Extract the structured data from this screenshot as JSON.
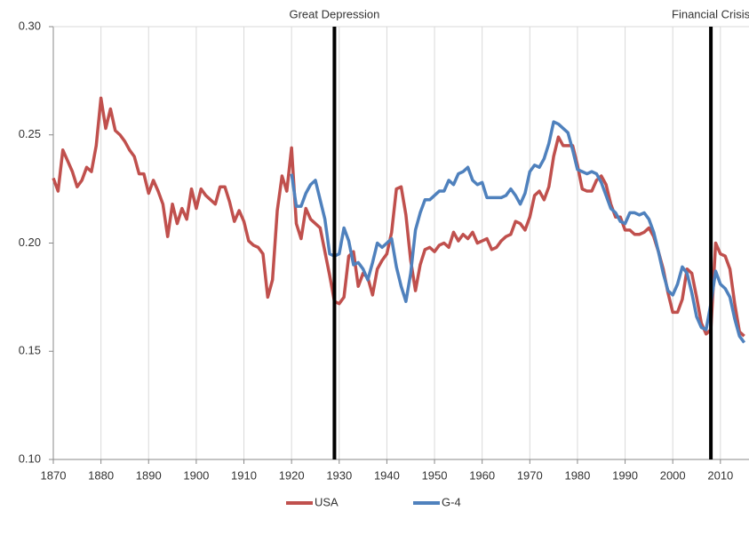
{
  "chart_data": {
    "type": "line",
    "x": [
      1870,
      1871,
      1872,
      1873,
      1874,
      1875,
      1876,
      1877,
      1878,
      1879,
      1880,
      1881,
      1882,
      1883,
      1884,
      1885,
      1886,
      1887,
      1888,
      1889,
      1890,
      1891,
      1892,
      1893,
      1894,
      1895,
      1896,
      1897,
      1898,
      1899,
      1900,
      1901,
      1902,
      1903,
      1904,
      1905,
      1906,
      1907,
      1908,
      1909,
      1910,
      1911,
      1912,
      1913,
      1914,
      1915,
      1916,
      1917,
      1918,
      1919,
      1920,
      1921,
      1922,
      1923,
      1924,
      1925,
      1926,
      1927,
      1928,
      1929,
      1930,
      1931,
      1932,
      1933,
      1934,
      1935,
      1936,
      1937,
      1938,
      1939,
      1940,
      1941,
      1942,
      1943,
      1944,
      1945,
      1946,
      1947,
      1948,
      1949,
      1950,
      1951,
      1952,
      1953,
      1954,
      1955,
      1956,
      1957,
      1958,
      1959,
      1960,
      1961,
      1962,
      1963,
      1964,
      1965,
      1966,
      1967,
      1968,
      1969,
      1970,
      1971,
      1972,
      1973,
      1974,
      1975,
      1976,
      1977,
      1978,
      1979,
      1980,
      1981,
      1982,
      1983,
      1984,
      1985,
      1986,
      1987,
      1988,
      1989,
      1990,
      1991,
      1992,
      1993,
      1994,
      1995,
      1996,
      1997,
      1998,
      1999,
      2000,
      2001,
      2002,
      2003,
      2004,
      2005,
      2006,
      2007,
      2008,
      2009,
      2010,
      2011,
      2012,
      2013,
      2014,
      2015
    ],
    "series": [
      {
        "name": "USA",
        "color": "#c0504d",
        "values": [
          0.23,
          0.224,
          0.243,
          0.238,
          0.233,
          0.226,
          0.229,
          0.235,
          0.233,
          0.245,
          0.267,
          0.253,
          0.262,
          0.252,
          0.25,
          0.247,
          0.243,
          0.24,
          0.232,
          0.232,
          0.223,
          0.229,
          0.224,
          0.218,
          0.203,
          0.218,
          0.209,
          0.216,
          0.211,
          0.225,
          0.216,
          0.225,
          0.222,
          0.22,
          0.218,
          0.226,
          0.226,
          0.219,
          0.21,
          0.215,
          0.21,
          0.201,
          0.199,
          0.198,
          0.195,
          0.175,
          0.183,
          0.215,
          0.231,
          0.224,
          0.244,
          0.209,
          0.202,
          0.216,
          0.211,
          0.209,
          0.207,
          0.196,
          0.185,
          0.173,
          0.172,
          0.175,
          0.194,
          0.196,
          0.18,
          0.186,
          0.184,
          0.176,
          0.188,
          0.192,
          0.195,
          0.205,
          0.225,
          0.226,
          0.213,
          0.192,
          0.178,
          0.19,
          0.197,
          0.198,
          0.196,
          0.199,
          0.2,
          0.198,
          0.205,
          0.201,
          0.204,
          0.202,
          0.205,
          0.2,
          0.201,
          0.202,
          0.197,
          0.198,
          0.201,
          0.203,
          0.204,
          0.21,
          0.209,
          0.206,
          0.212,
          0.222,
          0.224,
          0.22,
          0.226,
          0.24,
          0.249,
          0.245,
          0.245,
          0.245,
          0.236,
          0.225,
          0.224,
          0.224,
          0.229,
          0.231,
          0.227,
          0.218,
          0.212,
          0.212,
          0.206,
          0.206,
          0.204,
          0.204,
          0.205,
          0.207,
          0.203,
          0.196,
          0.188,
          0.177,
          0.168,
          0.168,
          0.174,
          0.188,
          0.186,
          0.175,
          0.163,
          0.158,
          0.16,
          0.2,
          0.195,
          0.194,
          0.188,
          0.172,
          0.159,
          0.157
        ]
      },
      {
        "name": "G-4",
        "color": "#4f81bd",
        "values": [
          null,
          null,
          null,
          null,
          null,
          null,
          null,
          null,
          null,
          null,
          null,
          null,
          null,
          null,
          null,
          null,
          null,
          null,
          null,
          null,
          null,
          null,
          null,
          null,
          null,
          null,
          null,
          null,
          null,
          null,
          null,
          null,
          null,
          null,
          null,
          null,
          null,
          null,
          null,
          null,
          null,
          null,
          null,
          null,
          null,
          null,
          null,
          null,
          null,
          null,
          0.232,
          0.217,
          0.217,
          0.223,
          0.227,
          0.229,
          0.22,
          0.211,
          0.195,
          0.194,
          0.195,
          0.207,
          0.201,
          0.19,
          0.191,
          0.188,
          0.183,
          0.191,
          0.2,
          0.198,
          0.2,
          0.202,
          0.189,
          0.18,
          0.173,
          0.186,
          0.206,
          0.214,
          0.22,
          0.22,
          0.222,
          0.224,
          0.224,
          0.229,
          0.227,
          0.232,
          0.233,
          0.235,
          0.229,
          0.227,
          0.228,
          0.221,
          0.221,
          0.221,
          0.221,
          0.222,
          0.225,
          0.222,
          0.218,
          0.223,
          0.233,
          0.236,
          0.235,
          0.239,
          0.246,
          0.256,
          0.255,
          0.253,
          0.251,
          0.243,
          0.234,
          0.233,
          0.232,
          0.233,
          0.232,
          0.228,
          0.222,
          0.216,
          0.214,
          0.21,
          0.209,
          0.214,
          0.214,
          0.213,
          0.214,
          0.211,
          0.205,
          0.196,
          0.186,
          0.178,
          0.176,
          0.181,
          0.189,
          0.186,
          0.177,
          0.166,
          0.161,
          0.16,
          0.172,
          0.187,
          0.181,
          0.179,
          0.175,
          0.165,
          0.157,
          0.154
        ]
      }
    ],
    "xlim": [
      1870,
      2016
    ],
    "ylim": [
      0.1,
      0.3
    ],
    "xticks": [
      1870,
      1880,
      1890,
      1900,
      1910,
      1920,
      1930,
      1940,
      1950,
      1960,
      1970,
      1980,
      1990,
      2000,
      2010
    ],
    "yticks": [
      {
        "value": 0.1,
        "label": "0.10"
      },
      0.15,
      {
        "value": 0.2,
        "label": "0.20"
      },
      0.25,
      {
        "value": 0.3,
        "label": "0.30"
      }
    ],
    "grid": true,
    "legend": "bottom",
    "annotations": [
      {
        "x": 1929,
        "label": "Great Depression"
      },
      {
        "x": 2008,
        "label": "Financial Crisis"
      }
    ]
  }
}
